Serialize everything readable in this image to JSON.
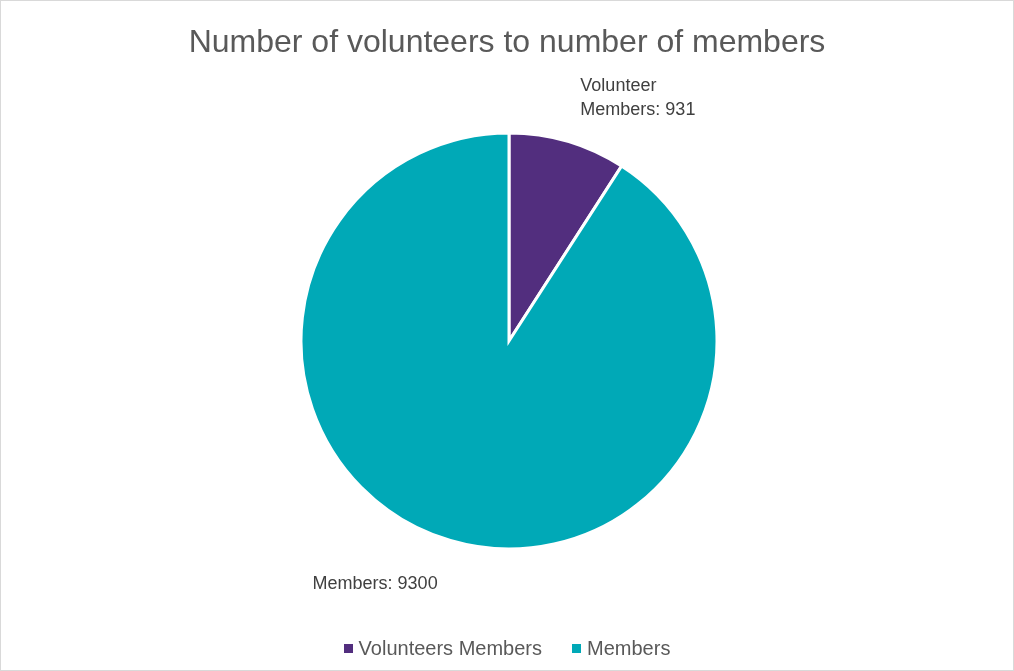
{
  "chart_data": {
    "type": "pie",
    "title": "Number of volunteers to number of members",
    "categories": [
      "Volunteers Members",
      "Members"
    ],
    "values": [
      931,
      9300
    ],
    "colors": [
      "#522e7e",
      "#00a9b7"
    ],
    "value_labels": [
      "Volunteer Members: 931",
      "Members: 9300"
    ],
    "legend": "bottom"
  }
}
